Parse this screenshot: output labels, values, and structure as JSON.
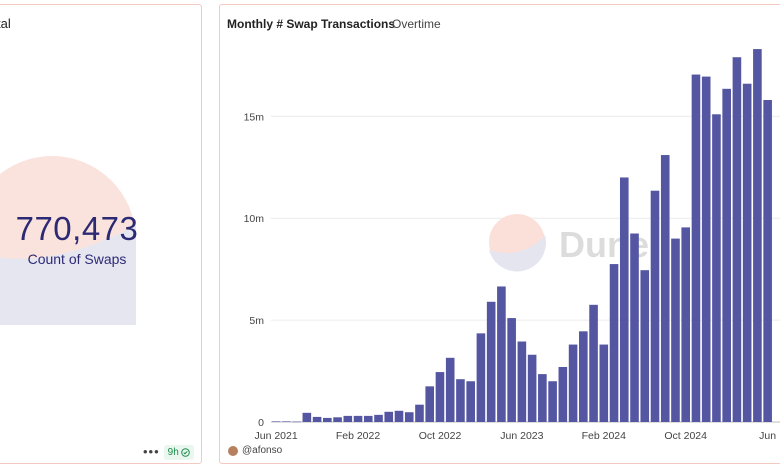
{
  "left_panel": {
    "title": "tal",
    "counter": {
      "value": "770,473",
      "label": "Count of Swaps"
    },
    "footer": {
      "menu": "•••",
      "age": "9h"
    }
  },
  "right_panel": {
    "title": "Monthly # Swap Transactions",
    "subtitle": "Overtime",
    "author": "@afonso",
    "watermark": "Dune"
  },
  "colors": {
    "bar": "#5456a2",
    "border": "#f3c9c2",
    "counter_text": "#2d2a74",
    "badge_green": "#1c8a4a"
  },
  "icons": {
    "menu": "more-dots-icon",
    "badge": "check-circle-icon",
    "avatar": "user-avatar-icon",
    "logo": "dune-logo-icon"
  },
  "chart_data": {
    "type": "bar",
    "title": "Monthly # Swap Transactions",
    "subtitle": "Overtime",
    "xlabel": "",
    "ylabel": "",
    "ylim": [
      0,
      18500000
    ],
    "yticks": [
      0,
      5000000,
      10000000,
      15000000
    ],
    "ytick_labels": [
      "0",
      "5m",
      "10m",
      "15m"
    ],
    "xtick_labels": [
      {
        "label": "Jun 2021",
        "index": 0
      },
      {
        "label": "Feb 2022",
        "index": 8
      },
      {
        "label": "Oct 2022",
        "index": 16
      },
      {
        "label": "Jun 2023",
        "index": 24
      },
      {
        "label": "Feb 2024",
        "index": 32
      },
      {
        "label": "Oct 2024",
        "index": 40
      },
      {
        "label": "Jun",
        "index": 48
      }
    ],
    "categories": [
      "Jun 2021",
      "Jul 2021",
      "Aug 2021",
      "Sep 2021",
      "Oct 2021",
      "Nov 2021",
      "Dec 2021",
      "Jan 2022",
      "Feb 2022",
      "Mar 2022",
      "Apr 2022",
      "May 2022",
      "Jun 2022",
      "Jul 2022",
      "Aug 2022",
      "Sep 2022",
      "Oct 2022",
      "Nov 2022",
      "Dec 2022",
      "Jan 2023",
      "Feb 2023",
      "Mar 2023",
      "Apr 2023",
      "May 2023",
      "Jun 2023",
      "Jul 2023",
      "Aug 2023",
      "Sep 2023",
      "Oct 2023",
      "Nov 2023",
      "Dec 2023",
      "Jan 2024",
      "Feb 2024",
      "Mar 2024",
      "Apr 2024",
      "May 2024",
      "Jun 2024",
      "Jul 2024",
      "Aug 2024",
      "Sep 2024",
      "Oct 2024",
      "Nov 2024",
      "Dec 2024",
      "Jan 2025",
      "Feb 2025",
      "Mar 2025",
      "Apr 2025",
      "May 2025",
      "Jun 2025"
    ],
    "values": [
      30000,
      30000,
      20000,
      450000,
      250000,
      200000,
      230000,
      300000,
      300000,
      300000,
      350000,
      500000,
      550000,
      480000,
      850000,
      1750000,
      2450000,
      3150000,
      2100000,
      2000000,
      4350000,
      5900000,
      6650000,
      5100000,
      3950000,
      3300000,
      2350000,
      2000000,
      2700000,
      3800000,
      4450000,
      5750000,
      3800000,
      7750000,
      12000000,
      9250000,
      7450000,
      11350000,
      13100000,
      9000000,
      9550000,
      17050000,
      16950000,
      15100000,
      16350000,
      17900000,
      16600000,
      18300000,
      15800000
    ],
    "grid": true,
    "legend": "none"
  }
}
